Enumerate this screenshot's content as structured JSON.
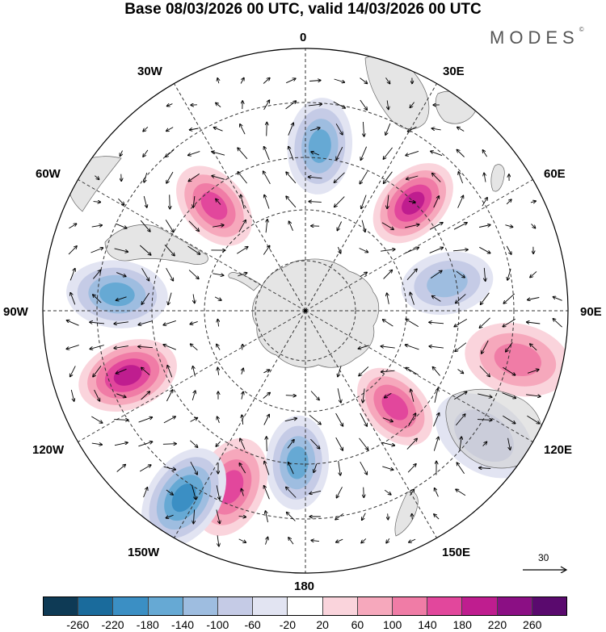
{
  "title": "Base 08/03/2026 00 UTC, valid 14/03/2026 00 UTC",
  "brand": {
    "name": "MODES",
    "mark": "©"
  },
  "longitude_labels": {
    "lon_0": "0",
    "lon_30e": "30E",
    "lon_60e": "60E",
    "lon_90e": "90E",
    "lon_120e": "120E",
    "lon_150e": "150E",
    "lon_180": "180",
    "lon_150w": "150W",
    "lon_120w": "120W",
    "lon_90w": "90W",
    "lon_60w": "60W",
    "lon_30w": "30W"
  },
  "vector_scale": {
    "value": "30"
  },
  "colorbar": {
    "colors": [
      "#0e3a55",
      "#1a6b9c",
      "#3b8fc4",
      "#66a9d4",
      "#9ebde0",
      "#c5cbe6",
      "#e2e4f2",
      "#ffffff",
      "#fad4dc",
      "#f6a8bc",
      "#f07ca6",
      "#e2479c",
      "#bf1d8f",
      "#8b0f84",
      "#5a0a6e"
    ],
    "levels": [
      "-260",
      "-220",
      "-180",
      "-140",
      "-100",
      "-60",
      "-20",
      "20",
      "60",
      "100",
      "140",
      "180",
      "220",
      "260"
    ]
  },
  "chart_data": {
    "type": "polar-stereographic anomaly map (Southern Hemisphere)",
    "title": "Base 08/03/2026 00 UTC, valid 14/03/2026 00 UTC",
    "field": "height anomaly (shaded) with wind vectors",
    "pole": "South Pole",
    "centers": [
      {
        "sign": "negative",
        "bearing_deg": 5,
        "dist": 0.63,
        "peak": -180
      },
      {
        "sign": "positive",
        "bearing_deg": 45,
        "dist": 0.58,
        "peak": 220
      },
      {
        "sign": "negative",
        "bearing_deg": 79,
        "dist": 0.55,
        "peak": -140
      },
      {
        "sign": "positive",
        "bearing_deg": 103,
        "dist": 0.83,
        "peak": 140
      },
      {
        "sign": "negative",
        "bearing_deg": 125,
        "dist": 0.83,
        "peak": -100
      },
      {
        "sign": "positive",
        "bearing_deg": 137,
        "dist": 0.5,
        "peak": 180
      },
      {
        "sign": "negative",
        "bearing_deg": 183,
        "dist": 0.58,
        "peak": -180
      },
      {
        "sign": "positive",
        "bearing_deg": 203,
        "dist": 0.73,
        "peak": 180
      },
      {
        "sign": "negative",
        "bearing_deg": 213,
        "dist": 0.85,
        "peak": -220
      },
      {
        "sign": "positive",
        "bearing_deg": 250,
        "dist": 0.72,
        "peak": 220
      },
      {
        "sign": "negative",
        "bearing_deg": 275,
        "dist": 0.72,
        "peak": -180
      },
      {
        "sign": "positive",
        "bearing_deg": 319,
        "dist": 0.53,
        "peak": 180
      }
    ]
  }
}
